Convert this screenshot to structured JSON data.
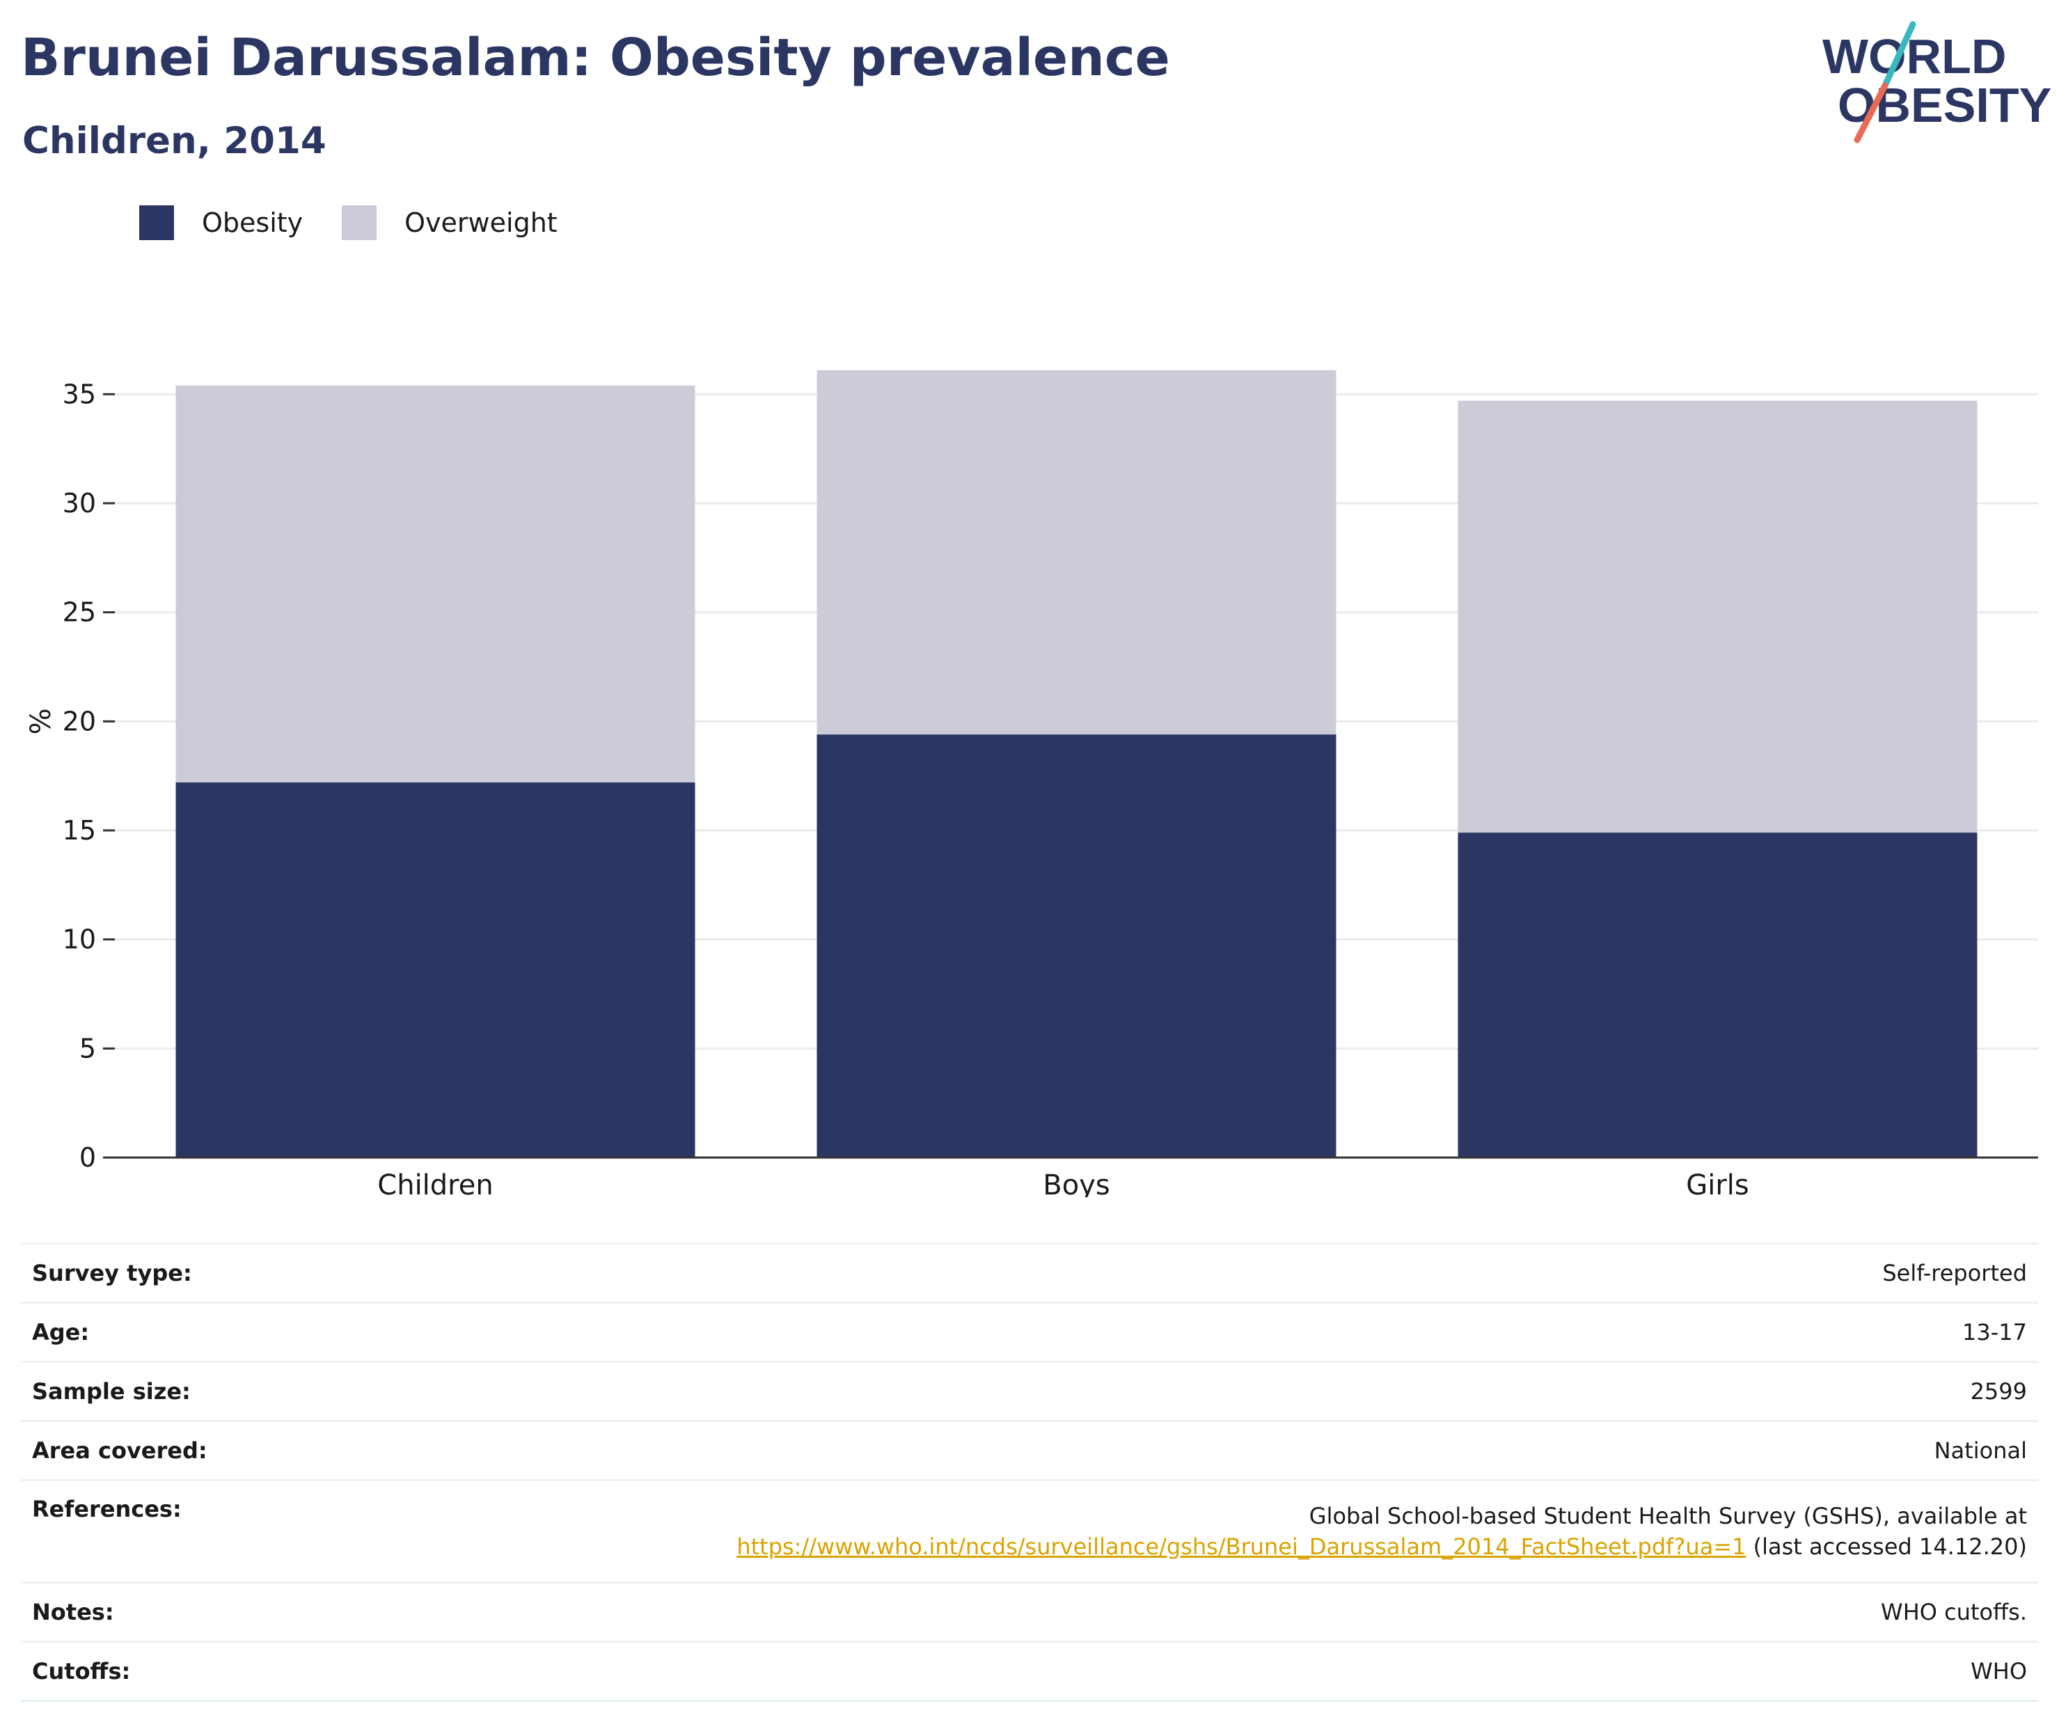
{
  "header": {
    "title": "Brunei Darussalam: Obesity prevalence",
    "subtitle": "Children, 2014"
  },
  "logo": {
    "line1": "WORLD",
    "line2": "OBESITY"
  },
  "colors": {
    "obesity": "#2b3663",
    "overweight": "#cbccd7",
    "link": "#d9a300",
    "title": "#2b3663"
  },
  "legend": [
    {
      "label": "Obesity"
    },
    {
      "label": "Overweight"
    }
  ],
  "chart_data": {
    "type": "bar",
    "stacked": true,
    "categories": [
      "Children",
      "Boys",
      "Girls"
    ],
    "series": [
      {
        "name": "Obesity",
        "values": [
          17.2,
          19.4,
          14.9
        ]
      },
      {
        "name": "Overweight",
        "values": [
          18.2,
          16.7,
          19.8
        ]
      }
    ],
    "ylabel": "%",
    "ylim": [
      0,
      36
    ],
    "yticks": [
      0,
      5,
      10,
      15,
      20,
      25,
      30,
      35
    ],
    "grid": true,
    "legend_position": "top-left"
  },
  "meta": {
    "survey_type": {
      "label": "Survey type:",
      "value": "Self-reported"
    },
    "age": {
      "label": "Age:",
      "value": "13-17"
    },
    "sample_size": {
      "label": "Sample size:",
      "value": "2599"
    },
    "area": {
      "label": "Area covered:",
      "value": "National"
    },
    "references": {
      "label": "References:",
      "text": "Global School-based Student Health Survey (GSHS), available at",
      "link": "https://www.who.int/ncds/surveillance/gshs/Brunei_Darussalam_2014_FactSheet.pdf?ua=1",
      "suffix": "(last accessed 14.12.20)"
    },
    "notes": {
      "label": "Notes:",
      "value": "WHO cutoffs."
    },
    "cutoffs": {
      "label": "Cutoffs:",
      "value": "WHO"
    }
  }
}
